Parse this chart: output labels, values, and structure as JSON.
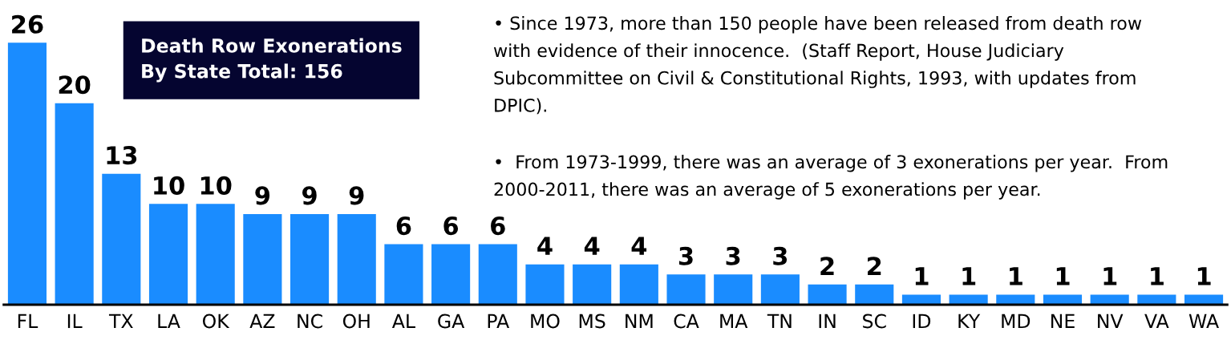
{
  "chart_data": {
    "type": "bar",
    "title": "Death Row Exonerations\nBy State Total: 156",
    "categories": [
      "FL",
      "IL",
      "TX",
      "LA",
      "OK",
      "AZ",
      "NC",
      "OH",
      "AL",
      "GA",
      "PA",
      "MO",
      "MS",
      "NM",
      "CA",
      "MA",
      "TN",
      "IN",
      "SC",
      "ID",
      "KY",
      "MD",
      "NE",
      "NV",
      "VA",
      "WA"
    ],
    "values": [
      26,
      20,
      13,
      10,
      10,
      9,
      9,
      9,
      6,
      6,
      6,
      4,
      4,
      4,
      3,
      3,
      3,
      2,
      2,
      1,
      1,
      1,
      1,
      1,
      1,
      1
    ],
    "color": "#1a8cff",
    "tick_labels": "x",
    "data_labels": true,
    "grid": false,
    "legend": false,
    "annotations": [
      "• Since 1973, more than 150 people have been released from death row\nwith evidence of their innocence.  (Staff Report, House Judiciary\nSubcommittee on Civil & Constitutional Rights, 1993, with updates from\nDPIC).",
      "•  From 1973-1999, there was an average of 3 exonerations per year.  From\n2000-2011, there was an average of 5 exonerations per year."
    ]
  }
}
